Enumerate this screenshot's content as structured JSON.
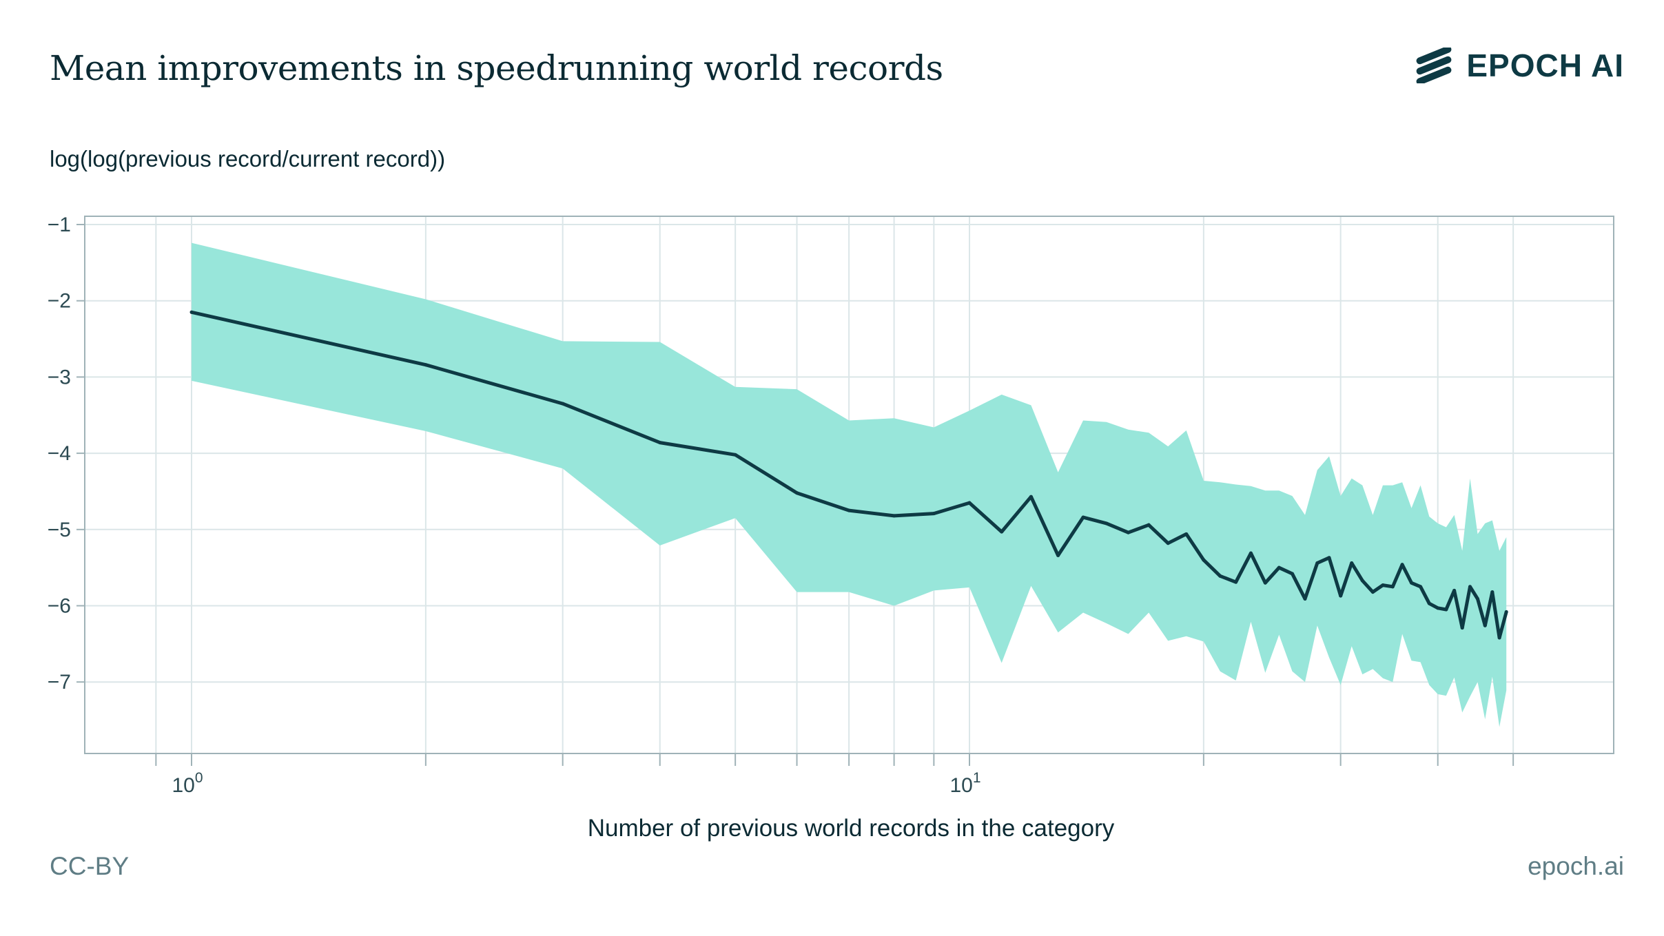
{
  "header": {
    "title": "Mean improvements in speedrunning world records",
    "logo_text": "EPOCH AI"
  },
  "footer": {
    "license": "CC-BY",
    "site": "epoch.ai"
  },
  "colors": {
    "line": "#0e3a44",
    "band": "#98e6da",
    "grid": "#dbe6e8",
    "axis": "#9fb2b7"
  },
  "chart_data": {
    "type": "line",
    "title": "Mean improvements in speedrunning world records",
    "xlabel": "Number of previous world records in the category",
    "ylabel": "log(log(previous record/current record))",
    "xscale": "log",
    "xlim": [
      0.73,
      67
    ],
    "ylim": [
      -7.9,
      -0.9
    ],
    "grid": true,
    "x_tick_labels": [
      {
        "value": 1,
        "base": "10",
        "exp": "0"
      },
      {
        "value": 10,
        "base": "10",
        "exp": "1"
      }
    ],
    "x_minor_ticks": [
      0.9,
      2,
      3,
      4,
      5,
      6,
      7,
      8,
      9,
      20,
      30,
      40,
      50
    ],
    "y_ticks": [
      -1,
      -2,
      -3,
      -4,
      -5,
      -6,
      -7
    ],
    "y_tick_labels": [
      "−1",
      "−2",
      "−3",
      "−4",
      "−5",
      "−6",
      "−7"
    ],
    "x": [
      1,
      2,
      3,
      4,
      5,
      6,
      7,
      8,
      9,
      10,
      11,
      12,
      13,
      14,
      15,
      16,
      17,
      18,
      19,
      20,
      21,
      22,
      23,
      24,
      25,
      26,
      27,
      28,
      29,
      30,
      31,
      32,
      33,
      34,
      35,
      36,
      37,
      38,
      39,
      40,
      41,
      42,
      43,
      44,
      45,
      46,
      47,
      48,
      49
    ],
    "series": [
      {
        "name": "mean",
        "values": [
          -2.15,
          -2.84,
          -3.35,
          -3.86,
          -4.02,
          -4.52,
          -4.75,
          -4.82,
          -4.79,
          -4.65,
          -5.03,
          -4.57,
          -5.34,
          -4.84,
          -4.92,
          -5.04,
          -4.94,
          -5.18,
          -5.06,
          -5.4,
          -5.61,
          -5.69,
          -5.31,
          -5.7,
          -5.5,
          -5.58,
          -5.91,
          -5.44,
          -5.37,
          -5.87,
          -5.44,
          -5.67,
          -5.82,
          -5.73,
          -5.75,
          -5.46,
          -5.7,
          -5.75,
          -5.97,
          -6.03,
          -6.05,
          -5.8,
          -6.29,
          -5.75,
          -5.91,
          -6.26,
          -5.82,
          -6.42,
          -6.08
        ]
      },
      {
        "name": "upper_bound",
        "values": [
          -1.24,
          -1.98,
          -2.53,
          -2.54,
          -3.13,
          -3.16,
          -3.57,
          -3.54,
          -3.66,
          -3.44,
          -3.23,
          -3.37,
          -4.25,
          -3.57,
          -3.59,
          -3.69,
          -3.73,
          -3.91,
          -3.7,
          -4.36,
          -4.38,
          -4.41,
          -4.43,
          -4.49,
          -4.49,
          -4.56,
          -4.81,
          -4.22,
          -4.04,
          -4.56,
          -4.33,
          -4.42,
          -4.81,
          -4.42,
          -4.42,
          -4.38,
          -4.72,
          -4.42,
          -4.83,
          -4.92,
          -4.97,
          -4.81,
          -5.28,
          -4.33,
          -5.06,
          -4.92,
          -4.88,
          -5.28,
          -5.1
        ]
      },
      {
        "name": "lower_bound",
        "values": [
          -3.05,
          -3.71,
          -4.2,
          -5.21,
          -4.85,
          -5.82,
          -5.82,
          -6.0,
          -5.8,
          -5.76,
          -6.75,
          -5.74,
          -6.35,
          -6.09,
          -6.23,
          -6.37,
          -6.09,
          -6.46,
          -6.4,
          -6.47,
          -6.86,
          -6.98,
          -6.21,
          -6.88,
          -6.38,
          -6.86,
          -7.0,
          -6.26,
          -6.68,
          -7.04,
          -6.53,
          -6.9,
          -6.83,
          -6.95,
          -7.0,
          -6.37,
          -6.72,
          -6.74,
          -7.04,
          -7.16,
          -7.18,
          -6.94,
          -7.4,
          -7.19,
          -7.0,
          -7.49,
          -6.93,
          -7.59,
          -7.11
        ]
      }
    ]
  }
}
